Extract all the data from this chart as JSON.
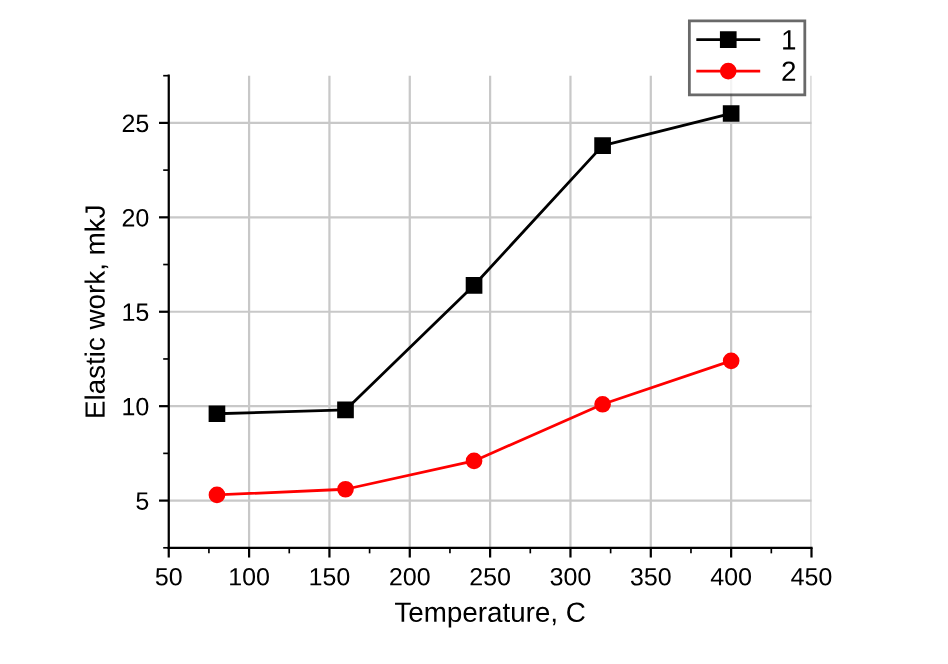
{
  "chart_data": {
    "type": "line",
    "xlabel": "Temperature, C",
    "ylabel": "Elastic work, mkJ",
    "x": [
      80,
      160,
      240,
      320,
      400
    ],
    "series": [
      {
        "name": "1",
        "color": "#000000",
        "marker": "square",
        "values": [
          9.6,
          9.8,
          16.4,
          23.8,
          25.5
        ]
      },
      {
        "name": "2",
        "color": "#ff0000",
        "marker": "circle",
        "values": [
          5.3,
          5.6,
          7.1,
          10.1,
          12.4
        ]
      }
    ],
    "xlim": [
      50,
      450
    ],
    "xticks": [
      50,
      100,
      150,
      200,
      250,
      300,
      350,
      400,
      450
    ],
    "ylim": [
      2.5,
      27.5
    ],
    "yticks": [
      5,
      10,
      15,
      20,
      25
    ],
    "grid": true,
    "legend": "top right",
    "line_style": "solid"
  }
}
